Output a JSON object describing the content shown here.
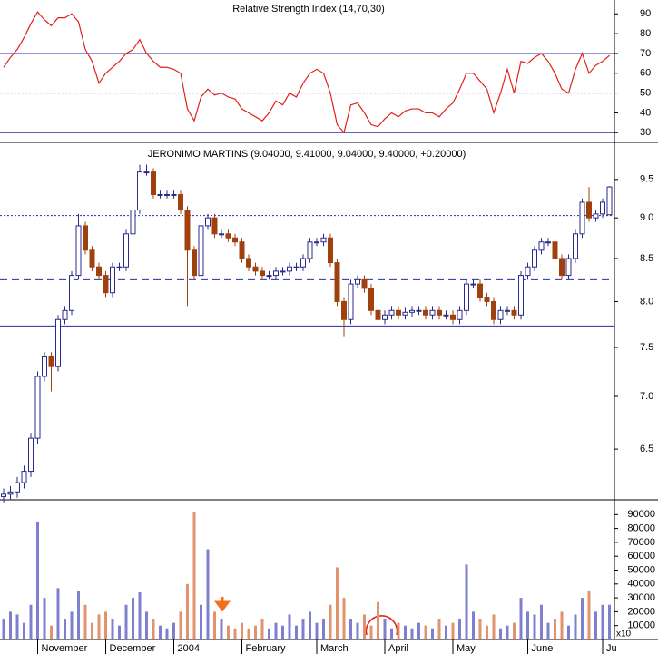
{
  "chart_data": [
    {
      "type": "line",
      "title": "Relative Strength Index (14,70,30)",
      "color": "#e0201c",
      "ylim": [
        26,
        97
      ],
      "yticks": [
        30,
        40,
        50,
        60,
        70,
        80,
        90
      ],
      "hlines": [
        {
          "value": 70,
          "style": "solid"
        },
        {
          "value": 50,
          "style": "dotted"
        },
        {
          "value": 30,
          "style": "solid"
        }
      ],
      "values": [
        63,
        68,
        72,
        78,
        85,
        91,
        87,
        84,
        88,
        88,
        90,
        86,
        72,
        66,
        55,
        60,
        63,
        66,
        70,
        72,
        77,
        70,
        66,
        63,
        63,
        62,
        60,
        42,
        36,
        48,
        52,
        49,
        50,
        48,
        47,
        42,
        40,
        38,
        36,
        40,
        46,
        44,
        50,
        48,
        55,
        60,
        62,
        60,
        50,
        34,
        30,
        44,
        45,
        40,
        34,
        33,
        37,
        40,
        38,
        41,
        42,
        42,
        40,
        40,
        38,
        42,
        45,
        52,
        60,
        60,
        56,
        52,
        40,
        50,
        62,
        50,
        66,
        65,
        68,
        70,
        66,
        60,
        52,
        50,
        62,
        70,
        60,
        64,
        66,
        69
      ]
    },
    {
      "type": "candlestick",
      "title": "JERONIMO MARTINS (9.04000, 9.41000, 9.04000, 9.40000, +0.20000)",
      "log_scale": true,
      "up_color": "#2a2a8c",
      "down_color": "#a0400f",
      "ylim": [
        6.06,
        9.97
      ],
      "yticks": [
        6.5,
        {
          "value": 7,
          "label": "7.0"
        },
        7.5,
        {
          "value": 8,
          "label": "8.0"
        },
        8.5,
        {
          "value": 9,
          "label": "9.0"
        },
        9.5
      ],
      "hlines": [
        {
          "value": 9.75,
          "style": "solid"
        },
        {
          "value": 9.03,
          "style": "dotted"
        },
        {
          "value": 8.25,
          "style": "dashed"
        },
        {
          "value": 7.73,
          "style": "solid"
        }
      ],
      "open": [
        6.08,
        6.1,
        6.12,
        6.2,
        6.3,
        6.6,
        7.2,
        7.4,
        7.3,
        7.8,
        7.9,
        8.3,
        8.9,
        8.6,
        8.4,
        8.3,
        8.1,
        8.4,
        8.4,
        8.8,
        9.1,
        9.6,
        9.6,
        9.3,
        9.3,
        9.3,
        9.3,
        9.1,
        8.6,
        8.3,
        8.9,
        9.0,
        8.8,
        8.8,
        8.75,
        8.7,
        8.5,
        8.4,
        8.35,
        8.3,
        8.3,
        8.35,
        8.35,
        8.4,
        8.4,
        8.5,
        8.7,
        8.7,
        8.75,
        8.45,
        8.0,
        7.8,
        8.2,
        8.25,
        8.15,
        7.9,
        7.8,
        7.85,
        7.9,
        7.85,
        7.88,
        7.9,
        7.9,
        7.85,
        7.9,
        7.85,
        7.85,
        7.8,
        7.9,
        8.2,
        8.2,
        8.05,
        8.0,
        7.8,
        7.9,
        7.9,
        7.85,
        8.3,
        8.4,
        8.6,
        8.7,
        8.7,
        8.5,
        8.3,
        8.5,
        8.8,
        9.2,
        9.0,
        9.05,
        9.04
      ],
      "high": [
        6.15,
        6.17,
        6.25,
        6.35,
        6.65,
        7.25,
        7.45,
        7.45,
        7.85,
        7.95,
        8.35,
        9.05,
        8.95,
        8.65,
        8.45,
        8.35,
        8.45,
        8.45,
        8.85,
        9.15,
        9.7,
        9.7,
        9.65,
        9.35,
        9.35,
        9.35,
        9.35,
        9.15,
        8.65,
        8.95,
        9.05,
        9.05,
        8.85,
        8.85,
        8.8,
        8.75,
        8.55,
        8.45,
        8.4,
        8.35,
        8.4,
        8.4,
        8.45,
        8.45,
        8.55,
        8.75,
        8.75,
        8.8,
        8.8,
        8.5,
        8.05,
        8.25,
        8.3,
        8.3,
        8.2,
        7.95,
        7.9,
        7.95,
        7.95,
        7.93,
        7.95,
        7.95,
        7.95,
        7.95,
        7.95,
        7.9,
        7.9,
        7.95,
        8.25,
        8.25,
        8.25,
        8.1,
        8.05,
        7.95,
        7.95,
        7.95,
        8.35,
        8.45,
        8.65,
        8.75,
        8.75,
        8.75,
        8.55,
        8.55,
        8.85,
        9.25,
        9.4,
        9.1,
        9.25,
        9.41
      ],
      "low": [
        6.03,
        6.05,
        6.07,
        6.15,
        6.25,
        6.55,
        7.15,
        7.05,
        7.25,
        7.75,
        7.85,
        8.25,
        8.55,
        8.35,
        8.25,
        8.05,
        8.05,
        8.35,
        8.35,
        8.75,
        9.05,
        9.55,
        9.25,
        9.25,
        9.25,
        9.25,
        9.05,
        7.95,
        8.25,
        8.25,
        8.85,
        8.75,
        8.75,
        8.7,
        8.65,
        8.45,
        8.35,
        8.3,
        8.25,
        8.25,
        8.25,
        8.3,
        8.3,
        8.35,
        8.35,
        8.45,
        8.65,
        8.65,
        8.4,
        7.95,
        7.62,
        7.75,
        8.15,
        8.1,
        7.85,
        7.4,
        7.75,
        7.8,
        7.8,
        7.8,
        7.83,
        7.85,
        7.8,
        7.8,
        7.8,
        7.8,
        7.75,
        7.75,
        7.85,
        8.15,
        8.0,
        7.95,
        7.75,
        7.75,
        7.85,
        7.8,
        7.8,
        8.25,
        8.35,
        8.55,
        8.65,
        8.45,
        8.25,
        8.25,
        8.45,
        8.75,
        8.95,
        8.95,
        9.0,
        9.04
      ],
      "close": [
        6.1,
        6.12,
        6.2,
        6.3,
        6.6,
        7.2,
        7.4,
        7.3,
        7.8,
        7.9,
        8.3,
        8.9,
        8.6,
        8.4,
        8.3,
        8.1,
        8.4,
        8.4,
        8.8,
        9.1,
        9.6,
        9.6,
        9.3,
        9.3,
        9.3,
        9.3,
        9.1,
        8.6,
        8.3,
        8.9,
        9.0,
        8.8,
        8.8,
        8.75,
        8.7,
        8.5,
        8.4,
        8.35,
        8.3,
        8.3,
        8.35,
        8.35,
        8.4,
        8.4,
        8.5,
        8.7,
        8.7,
        8.75,
        8.45,
        8.0,
        7.8,
        8.2,
        8.25,
        8.15,
        7.9,
        7.8,
        7.85,
        7.9,
        7.85,
        7.88,
        7.9,
        7.9,
        7.85,
        7.9,
        7.85,
        7.85,
        7.8,
        7.9,
        8.2,
        8.2,
        8.05,
        8.0,
        7.8,
        7.9,
        7.9,
        7.85,
        8.3,
        8.4,
        8.6,
        8.7,
        8.7,
        8.5,
        8.3,
        8.5,
        8.8,
        9.2,
        9.0,
        9.05,
        9.2,
        9.4
      ]
    },
    {
      "type": "bar",
      "up_color": "#7f7fd2",
      "down_color": "#e2926c",
      "unit_note": "x10",
      "ylim": [
        0,
        100000
      ],
      "yticks": [
        10000,
        20000,
        30000,
        40000,
        50000,
        60000,
        70000,
        80000,
        90000
      ],
      "categories": [
        null,
        null,
        null,
        null,
        null,
        "November",
        null,
        null,
        null,
        null,
        null,
        null,
        null,
        null,
        null,
        "December",
        null,
        null,
        null,
        null,
        null,
        null,
        null,
        null,
        null,
        "2004",
        null,
        null,
        null,
        null,
        null,
        null,
        null,
        null,
        null,
        "February",
        null,
        null,
        null,
        null,
        null,
        null,
        null,
        null,
        null,
        null,
        "March",
        null,
        null,
        null,
        null,
        null,
        null,
        null,
        null,
        null,
        "April",
        null,
        null,
        null,
        null,
        null,
        null,
        null,
        null,
        null,
        "May",
        null,
        null,
        null,
        null,
        null,
        null,
        null,
        null,
        null,
        null,
        "June",
        null,
        null,
        null,
        null,
        null,
        null,
        null,
        null,
        null,
        null,
        "Ju",
        null
      ],
      "values": [
        15000,
        20000,
        18000,
        12000,
        25000,
        85000,
        30000,
        10000,
        37000,
        15000,
        20000,
        35000,
        25000,
        12000,
        18000,
        20000,
        15000,
        10000,
        25000,
        30000,
        34000,
        20000,
        15000,
        10000,
        8000,
        12000,
        20000,
        40000,
        92000,
        25000,
        65000,
        20000,
        15000,
        10000,
        8000,
        12000,
        8000,
        10000,
        15000,
        8000,
        12000,
        10000,
        18000,
        10000,
        15000,
        20000,
        12000,
        15000,
        25000,
        52000,
        30000,
        15000,
        12000,
        18000,
        10000,
        27000,
        15000,
        8000,
        12000,
        10000,
        8000,
        12000,
        10000,
        8000,
        15000,
        10000,
        12000,
        15000,
        54000,
        20000,
        15000,
        10000,
        18000,
        8000,
        10000,
        12000,
        30000,
        20000,
        18000,
        25000,
        12000,
        15000,
        20000,
        10000,
        18000,
        30000,
        35000,
        20000,
        25000,
        25000
      ]
    }
  ]
}
